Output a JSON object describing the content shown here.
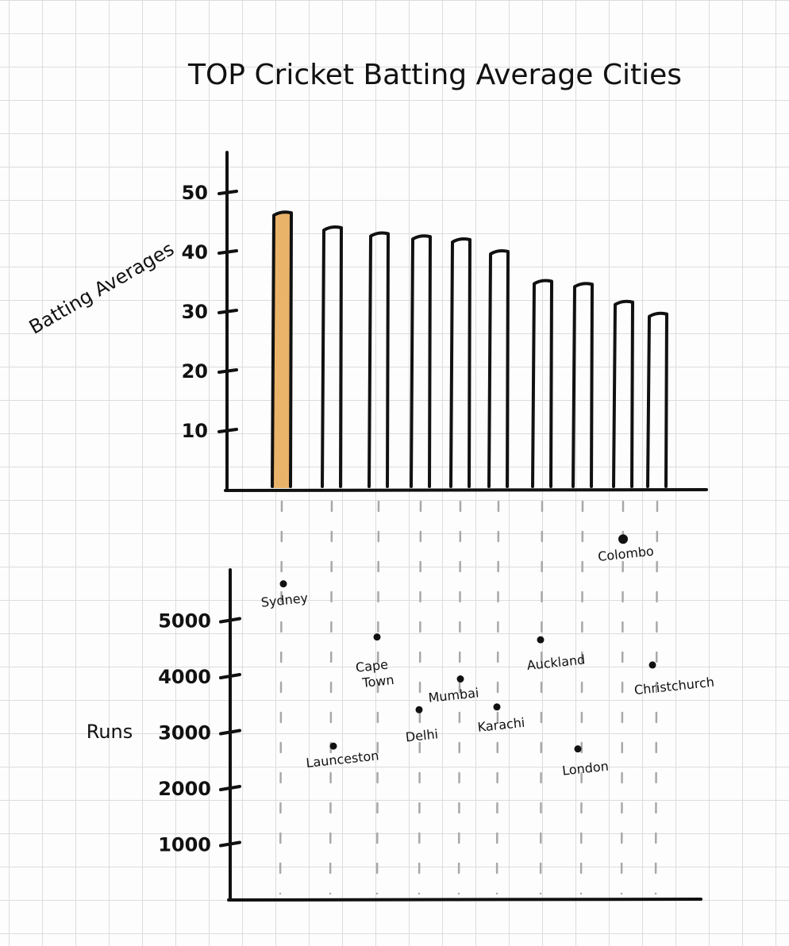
{
  "chart_data": [
    {
      "type": "bar",
      "title": "TOP Cricket Batting Average Cities",
      "ylabel": "Batting Averages",
      "xlabel": "",
      "categories": [
        "Sydney",
        "Launceston",
        "Cape Town",
        "Delhi",
        "Mumbai",
        "Karachi",
        "Auckland",
        "London",
        "Colombo",
        "Christchurch"
      ],
      "values": [
        46.5,
        44,
        43,
        42.5,
        42,
        40,
        35,
        34.5,
        31.5,
        29.5
      ],
      "highlight_index": 0,
      "highlight_color": "#e9b36a",
      "yticks": [
        10,
        20,
        30,
        40,
        50
      ],
      "ylim": [
        0,
        55
      ],
      "grid": false
    },
    {
      "type": "scatter",
      "ylabel": "Runs",
      "xlabel": "",
      "points": [
        {
          "label": "Sydney",
          "y": 5650
        },
        {
          "label": "Launceston",
          "y": 2750
        },
        {
          "label": "Cape Town",
          "y": 4700
        },
        {
          "label": "Delhi",
          "y": 3400
        },
        {
          "label": "Mumbai",
          "y": 3950
        },
        {
          "label": "Karachi",
          "y": 3450
        },
        {
          "label": "Auckland",
          "y": 4650
        },
        {
          "label": "London",
          "y": 2700
        },
        {
          "label": "Colombo",
          "y": 6450
        },
        {
          "label": "Christchurch",
          "y": 4200
        }
      ],
      "label_lines": {
        "Cape Town": [
          "Cape",
          "Town"
        ]
      },
      "yticks": [
        1000,
        2000,
        3000,
        4000,
        5000
      ],
      "ylim": [
        0,
        7000
      ],
      "grid": false
    }
  ]
}
